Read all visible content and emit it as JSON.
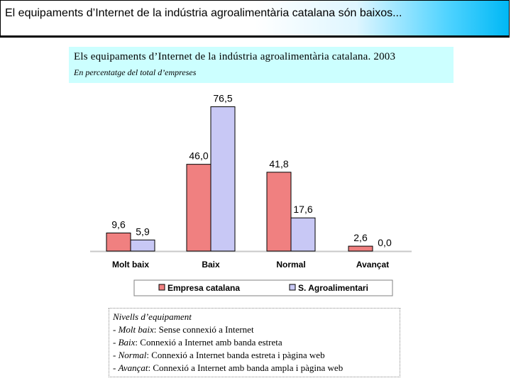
{
  "banner": {
    "title": "El equipaments d’Internet de la indústria agroalimentària catalana són baixos..."
  },
  "colors": {
    "empresa": "#f08080",
    "agro": "#c8c8f5",
    "banner_accent": "#00b8f5",
    "title_box": "#ccffff"
  },
  "chart_data": {
    "type": "bar",
    "title": "Els equipaments d’Internet de la indústria agroalimentària catalana. 2003",
    "subtitle": "En percentatge del total d’empreses",
    "categories": [
      "Molt baix",
      "Baix",
      "Normal",
      "Avançat"
    ],
    "series": [
      {
        "name": "Empresa catalana",
        "values": [
          9.6,
          46.0,
          41.8,
          2.6
        ],
        "labels": [
          "9,6",
          "46,0",
          "41,8",
          "2,6"
        ],
        "color": "#f08080"
      },
      {
        "name": "S. Agroalimentari",
        "values": [
          5.9,
          76.5,
          17.6,
          0.0
        ],
        "labels": [
          "5,9",
          "76,5",
          "17,6",
          "0,0"
        ],
        "color": "#c8c8f5"
      }
    ],
    "ylim": [
      0,
      80
    ],
    "grid": false,
    "legend": "bottom"
  },
  "notes": {
    "heading": "Nivells d’equipament",
    "items": [
      {
        "term": "Molt baix",
        "text": ": Sense connexió a Internet"
      },
      {
        "term": "Baix",
        "text": ": Connexió a Internet amb banda estreta"
      },
      {
        "term": "Normal",
        "text": ": Connexió a Internet banda estreta i pàgina web"
      },
      {
        "term": "Avançat",
        "text": ": Connexió a Internet amb banda ampla i pàgina web"
      }
    ]
  }
}
